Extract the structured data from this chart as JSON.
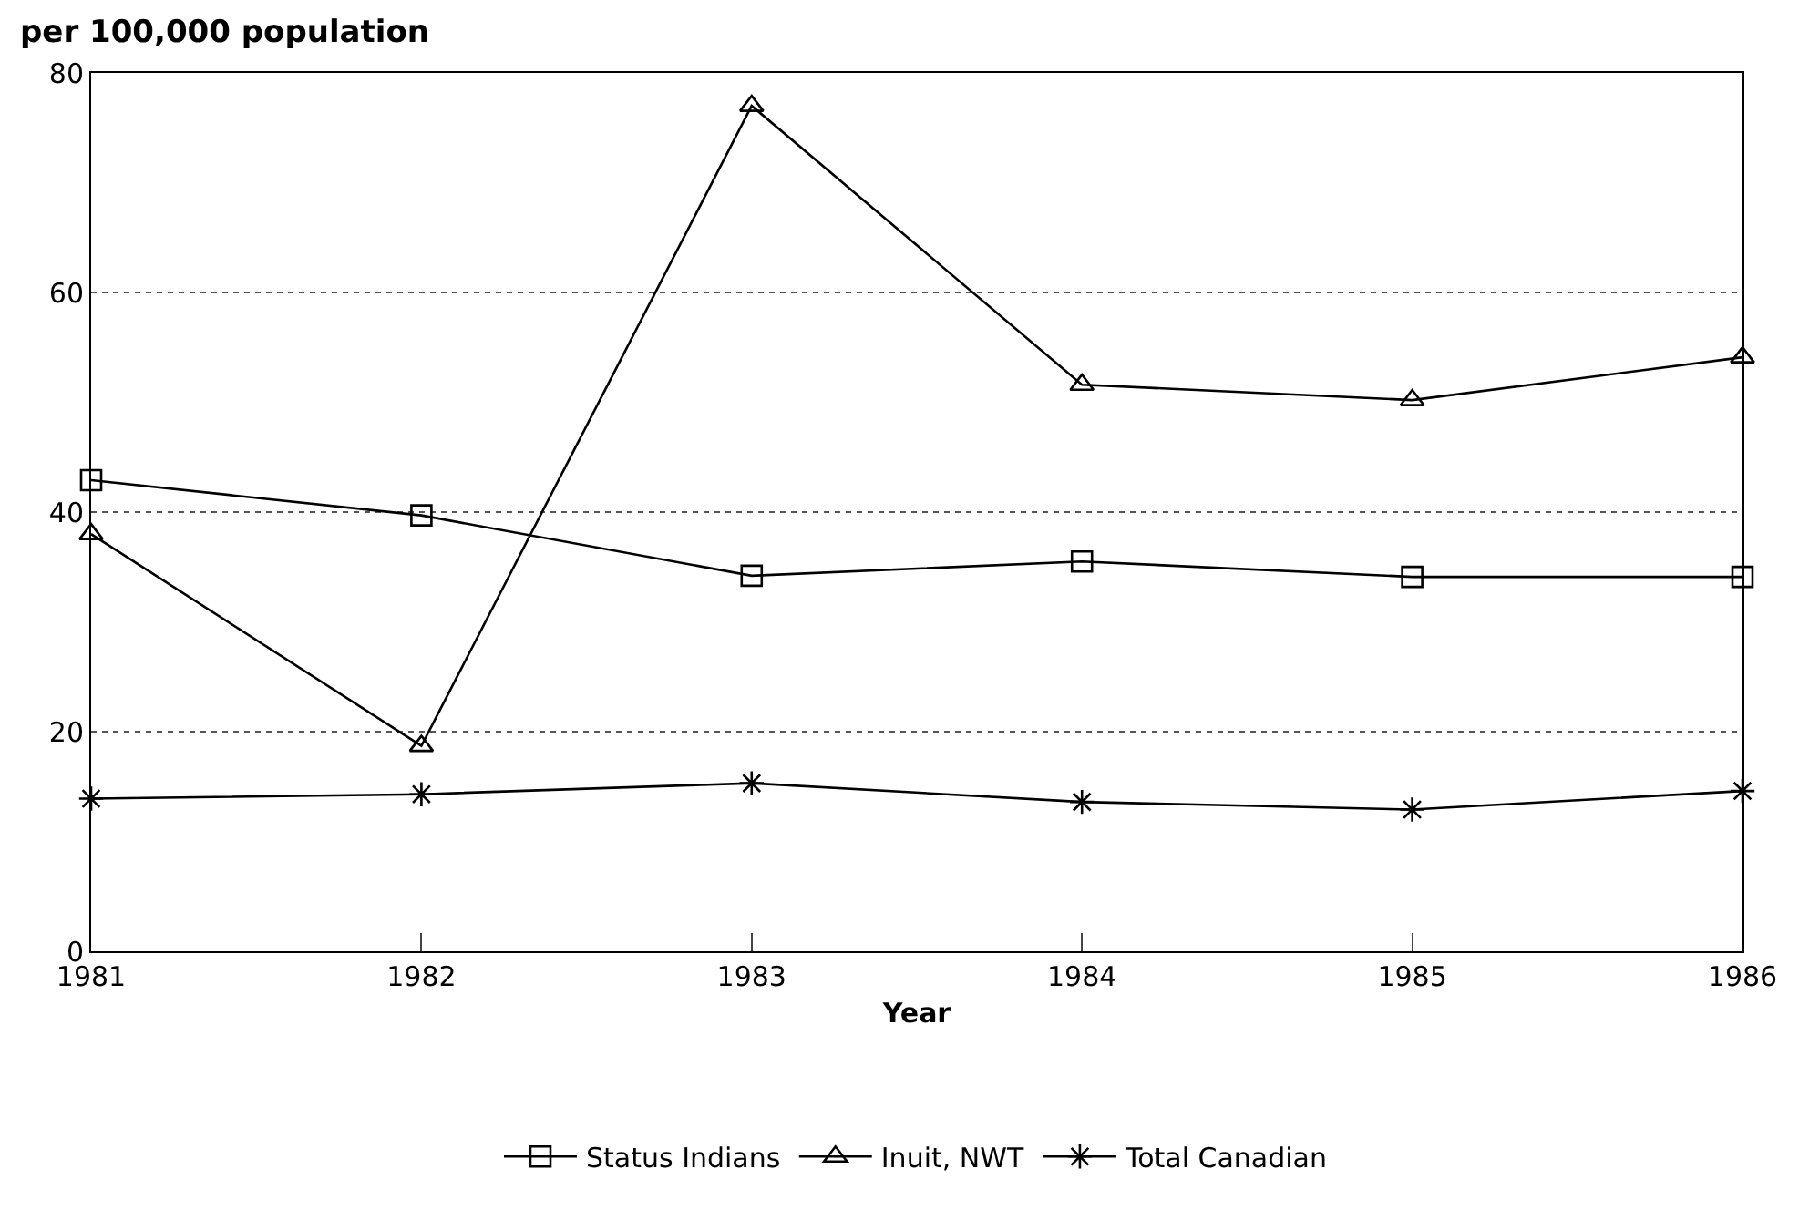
{
  "chart_data": {
    "type": "line",
    "ylabel": "per 100,000 population",
    "xlabel": "Year",
    "x": [
      1981,
      1982,
      1983,
      1984,
      1985,
      1986
    ],
    "xlim": [
      1981,
      1986
    ],
    "xticks": [
      1981,
      1982,
      1983,
      1984,
      1985,
      1986
    ],
    "ylim": [
      0,
      80
    ],
    "yticks": [
      0,
      20,
      40,
      60,
      80
    ],
    "grid": "y",
    "legend": "bottom",
    "line_style": "solid",
    "series": [
      {
        "name": "Status Indians",
        "color": "#000000",
        "marker": "square",
        "values": [
          42.9,
          39.7,
          34.2,
          35.5,
          34.1,
          34.1
        ]
      },
      {
        "name": "Inuit, NWT",
        "color": "#000000",
        "marker": "triangle",
        "values": [
          38.0,
          18.7,
          77.0,
          51.6,
          50.2,
          54.1
        ]
      },
      {
        "name": "Total Canadian",
        "color": "#000000",
        "marker": "cross",
        "values": [
          13.9,
          14.3,
          15.3,
          13.6,
          12.9,
          14.6
        ]
      }
    ]
  }
}
